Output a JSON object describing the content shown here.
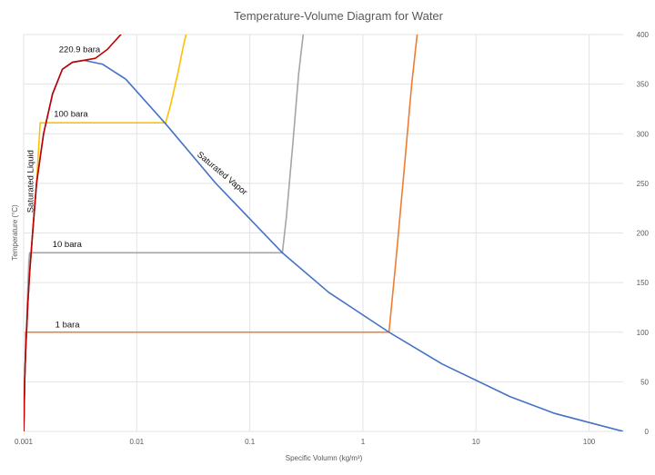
{
  "chart_data": {
    "type": "line",
    "title": "Temperature-Volume Diagram for Water",
    "xlabel": "Specific Volumn (kg/m³)",
    "ylabel": "Temperature (°C)",
    "x_scale": "log",
    "xlim": [
      0.001,
      200
    ],
    "ylim": [
      0,
      400
    ],
    "x_ticks": [
      "0.001",
      "0.01",
      "0.1",
      "1",
      "10",
      "100"
    ],
    "x_tick_values": [
      0.001,
      0.01,
      0.1,
      1,
      10,
      100
    ],
    "y_ticks": [
      "0",
      "50",
      "100",
      "150",
      "200",
      "250",
      "300",
      "350",
      "400"
    ],
    "y_tick_values": [
      0,
      50,
      100,
      150,
      200,
      250,
      300,
      350,
      400
    ],
    "y_axis_side": "right",
    "grid": true,
    "legend": "none",
    "series": [
      {
        "color": "#4472c4",
        "x": [
          0.001,
          0.00101,
          0.00102,
          0.00104,
          0.00106,
          0.00109,
          0.00113,
          0.0012,
          0.0013,
          0.0015,
          0.0018,
          0.0022,
          0.0027,
          0.0034,
          0.005,
          0.008,
          0.018,
          0.05,
          0.194,
          0.5,
          1.7,
          5,
          20,
          50,
          100,
          200
        ],
        "y": [
          0,
          20,
          50,
          80,
          100,
          130,
          160,
          200,
          250,
          300,
          340,
          365,
          372,
          374,
          370,
          355,
          310,
          250,
          180,
          140,
          100,
          68,
          35,
          18,
          9,
          0
        ]
      },
      {
        "color": "#c00000",
        "x": [
          0.001,
          0.00101,
          0.00102,
          0.00104,
          0.00106,
          0.00109,
          0.00113,
          0.0012,
          0.0013,
          0.0015,
          0.0018,
          0.0022,
          0.0027,
          0.0034,
          0.0043,
          0.0055,
          0.0075,
          0.009
        ],
        "y": [
          0,
          20,
          50,
          80,
          100,
          130,
          160,
          200,
          250,
          300,
          340,
          365,
          372,
          374,
          376,
          385,
          402,
          410
        ]
      },
      {
        "color": "#ffc000",
        "x": [
          0.001,
          0.00101,
          0.00102,
          0.00104,
          0.00106,
          0.00109,
          0.00113,
          0.0012,
          0.0013,
          0.0014,
          0.018,
          0.02,
          0.023,
          0.026,
          0.028
        ],
        "y": [
          0,
          20,
          50,
          80,
          100,
          130,
          160,
          200,
          250,
          311,
          311,
          330,
          360,
          390,
          405
        ]
      },
      {
        "color": "#a5a5a5",
        "x": [
          0.001,
          0.00102,
          0.00104,
          0.00107,
          0.00111,
          0.00113,
          0.194,
          0.21,
          0.24,
          0.27,
          0.3
        ],
        "y": [
          0,
          50,
          80,
          120,
          170,
          180,
          180,
          215,
          290,
          360,
          405
        ]
      },
      {
        "color": "#ed7d31",
        "x": [
          0.001,
          0.00102,
          0.00104,
          0.00104,
          1.7,
          1.95,
          2.3,
          2.7,
          3.05
        ],
        "y": [
          0,
          50,
          80,
          100,
          100,
          170,
          260,
          350,
          405
        ]
      }
    ],
    "annotations": [
      {
        "text": "220.9 bara",
        "x": 0.00205,
        "y": 382
      },
      {
        "text": "100 bara",
        "x": 0.00185,
        "y": 317
      },
      {
        "text": "10 bara",
        "x": 0.0018,
        "y": 186
      },
      {
        "text": "1 bara",
        "x": 0.0019,
        "y": 105
      },
      {
        "text": "Saturated Liquid",
        "x": 0.00122,
        "y": 252,
        "rotation": -90
      },
      {
        "text": "Saturated Vapor",
        "x": 0.055,
        "y": 258,
        "rotation": 40
      }
    ]
  }
}
